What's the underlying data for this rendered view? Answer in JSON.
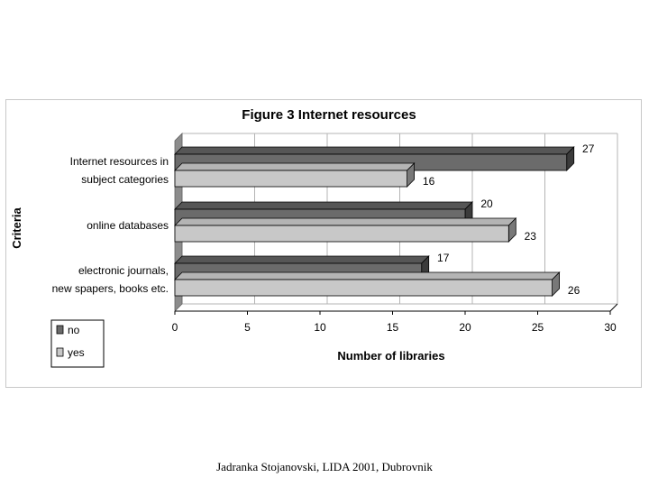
{
  "chart_data": {
    "type": "bar",
    "orientation": "horizontal",
    "style": "3d",
    "title": "Figure 3 Internet resources",
    "xlabel": "Number of libraries",
    "ylabel": "Criteria",
    "xlim": [
      0,
      30
    ],
    "xticks": [
      0,
      5,
      10,
      15,
      20,
      25,
      30
    ],
    "grid": true,
    "legend_position": "bottom-left",
    "categories": [
      [
        "Internet resources in",
        "subject categories"
      ],
      [
        "online databases"
      ],
      [
        "electronic journals,",
        "new spapers, books etc."
      ]
    ],
    "series": [
      {
        "name": "no",
        "values": [
          27,
          20,
          17
        ],
        "color": "#6b6b6b"
      },
      {
        "name": "yes",
        "values": [
          16,
          23,
          26
        ],
        "color": "#c8c8c8"
      }
    ],
    "data_labels": true
  },
  "footer": "Jadranka Stojanovski, LIDA 2001, Dubrovnik"
}
